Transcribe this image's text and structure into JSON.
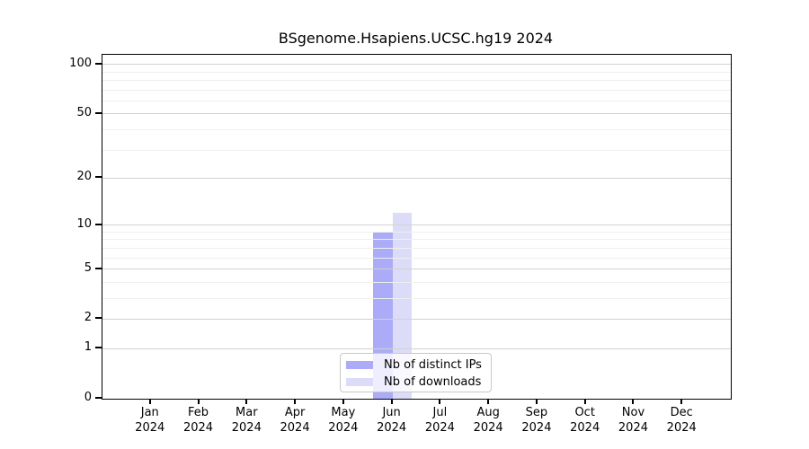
{
  "chart_data": {
    "type": "bar",
    "title": "BSgenome.Hsapiens.UCSC.hg19 2024",
    "categories": [
      {
        "month": "Jan",
        "year": "2024"
      },
      {
        "month": "Feb",
        "year": "2024"
      },
      {
        "month": "Mar",
        "year": "2024"
      },
      {
        "month": "Apr",
        "year": "2024"
      },
      {
        "month": "May",
        "year": "2024"
      },
      {
        "month": "Jun",
        "year": "2024"
      },
      {
        "month": "Jul",
        "year": "2024"
      },
      {
        "month": "Aug",
        "year": "2024"
      },
      {
        "month": "Sep",
        "year": "2024"
      },
      {
        "month": "Oct",
        "year": "2024"
      },
      {
        "month": "Nov",
        "year": "2024"
      },
      {
        "month": "Dec",
        "year": "2024"
      }
    ],
    "series": [
      {
        "name": "Nb of distinct IPs",
        "color": "#ababf7",
        "values": [
          0,
          0,
          0,
          0,
          0,
          9,
          0,
          0,
          0,
          0,
          0,
          0
        ]
      },
      {
        "name": "Nb of downloads",
        "color": "#dcdcf8",
        "values": [
          0,
          0,
          0,
          0,
          0,
          12,
          0,
          0,
          0,
          0,
          0,
          0
        ]
      }
    ],
    "y_axis": {
      "scale": "log1p",
      "ticks": [
        0,
        1,
        2,
        5,
        10,
        20,
        50,
        100
      ],
      "minor_gridlines": [
        3,
        4,
        6,
        7,
        8,
        9,
        30,
        40,
        60,
        70,
        80,
        90
      ],
      "max": 113.5
    },
    "x_axis": {
      "tick_count": 12
    },
    "legend": {
      "position": "bottom-center"
    },
    "grid": true,
    "colors": {
      "grid_major": "#d2d2d2",
      "grid_minor": "#efefef",
      "axis": "#000000",
      "text": "#000000",
      "legend_border": "#c9c9c9"
    }
  }
}
